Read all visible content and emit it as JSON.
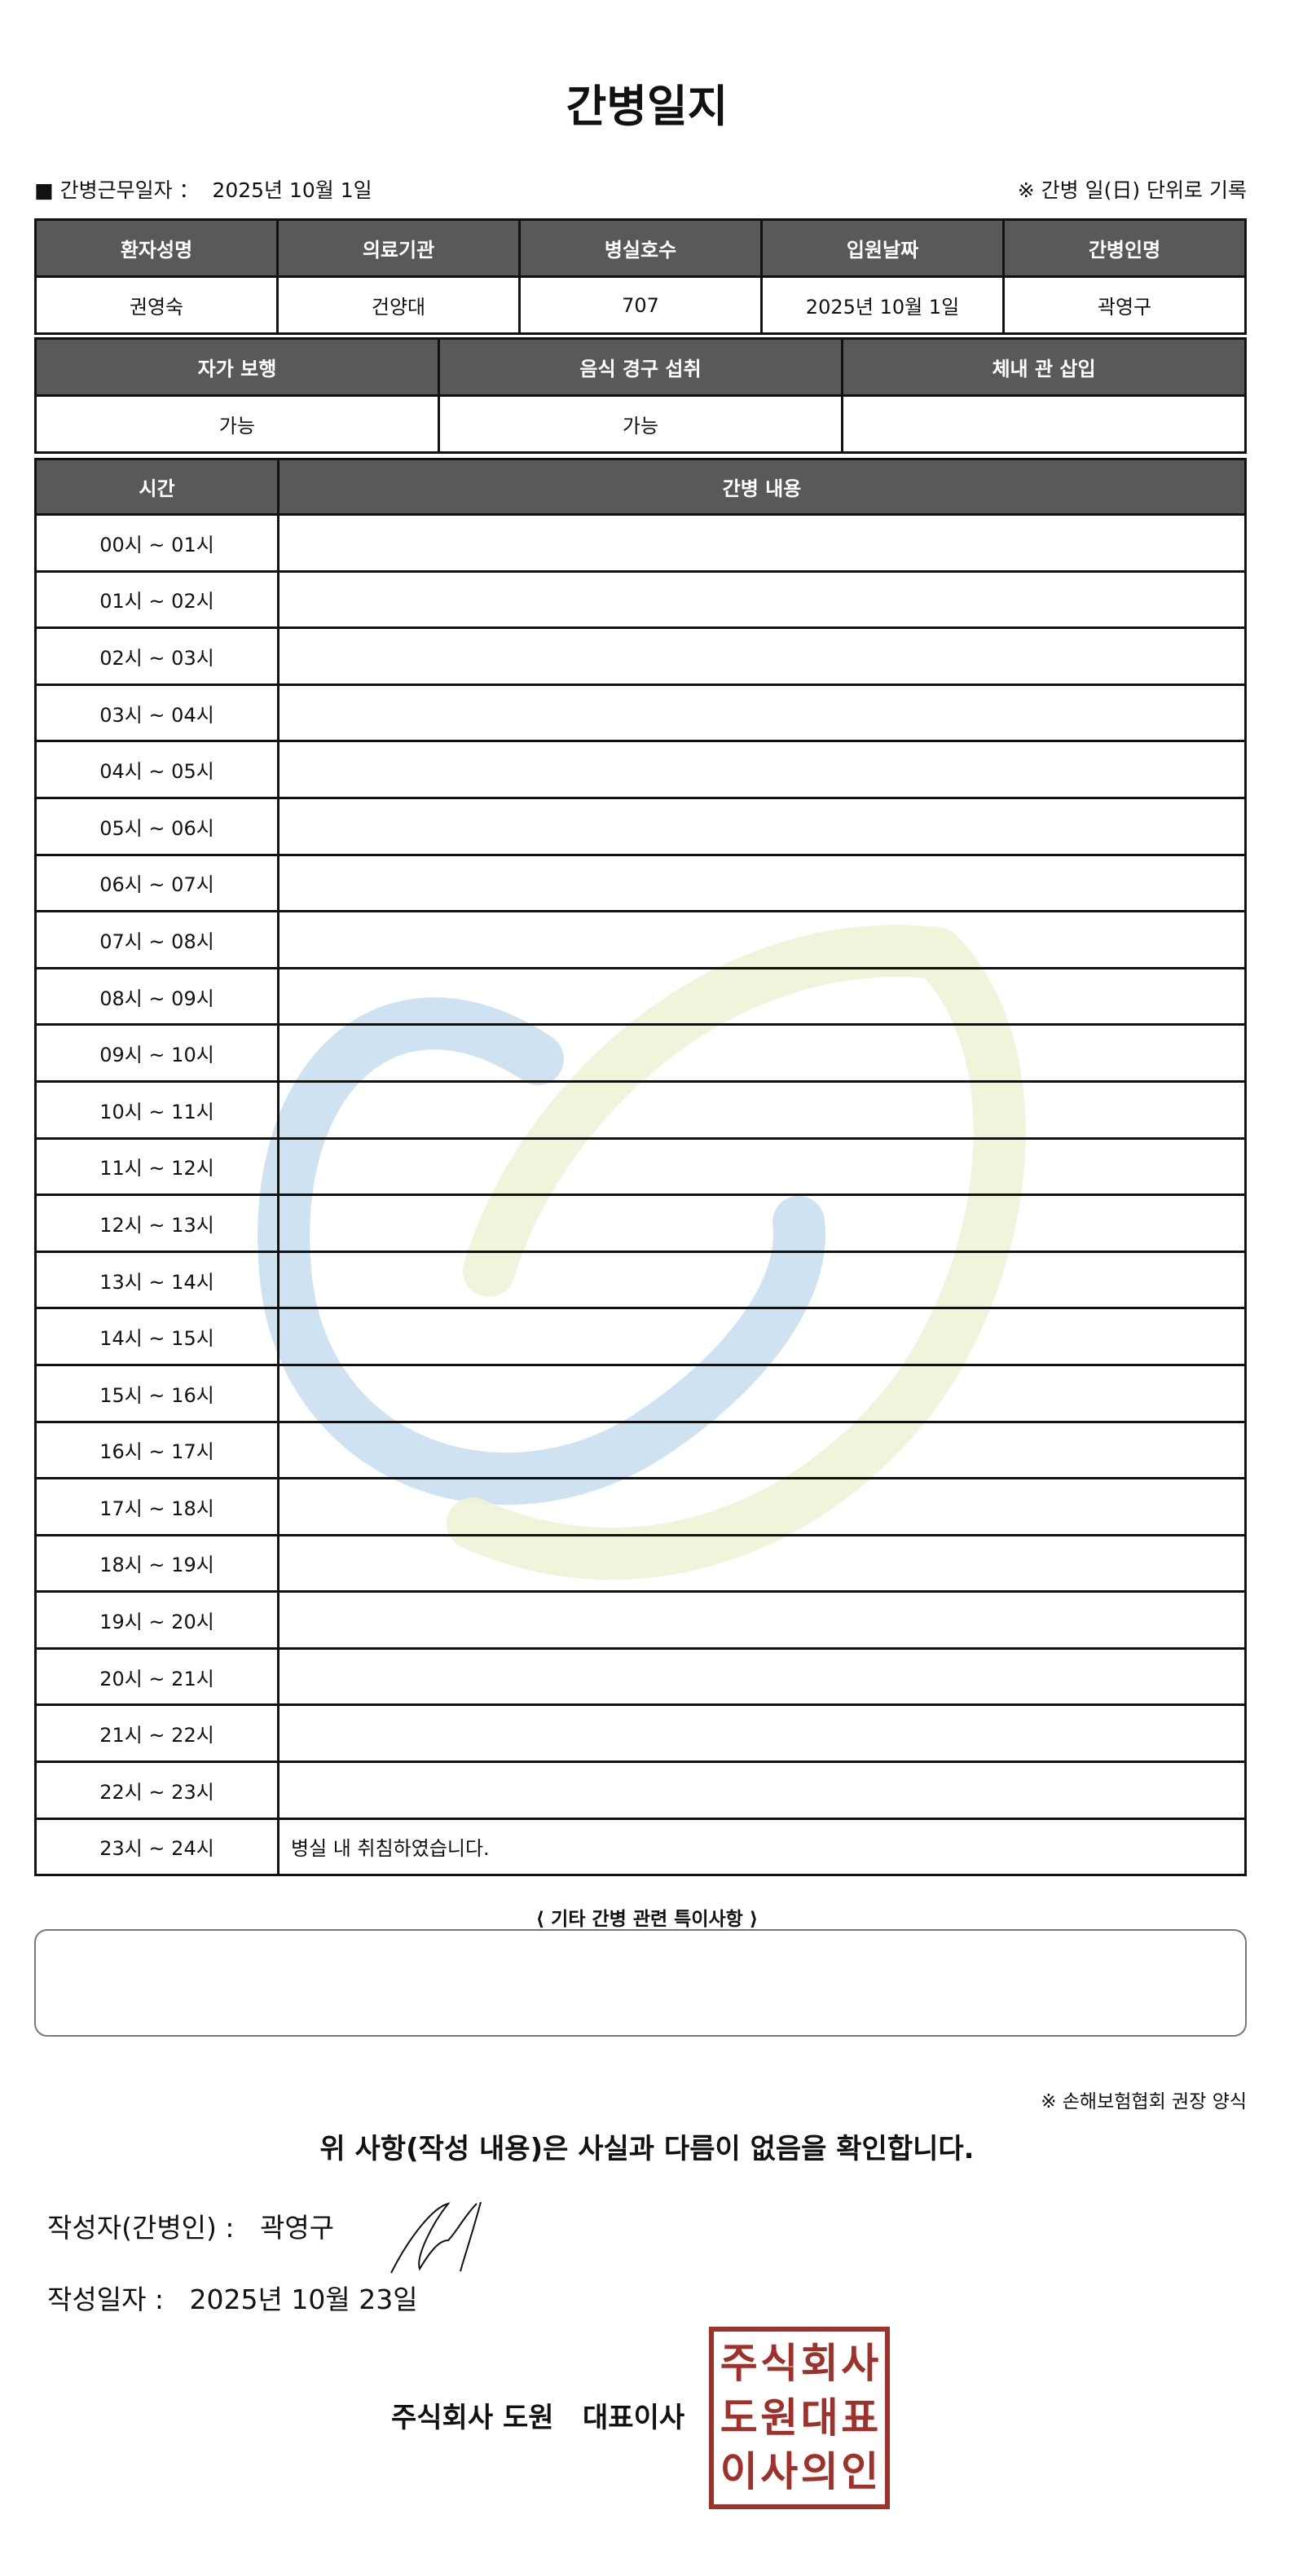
{
  "title": "간병일지",
  "info": {
    "work_date_label": "■ 간병근무일자 ：",
    "work_date": "2025년 10월 1일",
    "unit_note": "※ 간병 일(日) 단위로 기록"
  },
  "patient_table": {
    "headers": [
      "환자성명",
      "의료기관",
      "병실호수",
      "입원날짜",
      "간병인명"
    ],
    "values": [
      "권영숙",
      "건양대",
      "707",
      "2025년 10월 1일",
      "곽영구"
    ]
  },
  "status_table": {
    "headers": [
      "자가 보행",
      "음식 경구 섭취",
      "체내 관 삽입"
    ],
    "values": [
      "가능",
      "가능",
      ""
    ]
  },
  "log_table": {
    "headers": [
      "시간",
      "간병 내용"
    ],
    "rows": [
      {
        "time": "00시 ~ 01시",
        "content": ""
      },
      {
        "time": "01시 ~ 02시",
        "content": ""
      },
      {
        "time": "02시 ~ 03시",
        "content": ""
      },
      {
        "time": "03시 ~ 04시",
        "content": ""
      },
      {
        "time": "04시 ~ 05시",
        "content": ""
      },
      {
        "time": "05시 ~ 06시",
        "content": ""
      },
      {
        "time": "06시 ~ 07시",
        "content": ""
      },
      {
        "time": "07시 ~ 08시",
        "content": ""
      },
      {
        "time": "08시 ~ 09시",
        "content": ""
      },
      {
        "time": "09시 ~ 10시",
        "content": ""
      },
      {
        "time": "10시 ~ 11시",
        "content": ""
      },
      {
        "time": "11시 ~ 12시",
        "content": ""
      },
      {
        "time": "12시 ~ 13시",
        "content": ""
      },
      {
        "time": "13시 ~ 14시",
        "content": ""
      },
      {
        "time": "14시 ~ 15시",
        "content": ""
      },
      {
        "time": "15시 ~ 16시",
        "content": ""
      },
      {
        "time": "16시 ~ 17시",
        "content": ""
      },
      {
        "time": "17시 ~ 18시",
        "content": ""
      },
      {
        "time": "18시 ~ 19시",
        "content": ""
      },
      {
        "time": "19시 ~ 20시",
        "content": ""
      },
      {
        "time": "20시 ~ 21시",
        "content": ""
      },
      {
        "time": "21시 ~ 22시",
        "content": ""
      },
      {
        "time": "22시 ~ 23시",
        "content": ""
      },
      {
        "time": "23시 ~ 24시",
        "content": "병실 내 취침하였습니다."
      }
    ]
  },
  "remarks": {
    "label": "⟨ 기타 간병 관련 특이사항 ⟩",
    "value": ""
  },
  "footer": {
    "note": "※ 손해보험협회 권장 양식",
    "confirm": "위 사항(작성 내용)은 사실과 다름이 없음을 확인합니다.",
    "writer_label": "작성자(간병인) :",
    "writer": "곽영구",
    "date_label": "작성일자 :",
    "date": "2025년 10월 23일",
    "company": "주식회사 도원   대표이사",
    "stamp_text": "주식회사도원대표이사의인"
  },
  "colors": {
    "header_bg": "#595959",
    "stamp": "#a0302a",
    "watermark_blue": "#c9dff0",
    "watermark_green": "#eef3d6"
  }
}
